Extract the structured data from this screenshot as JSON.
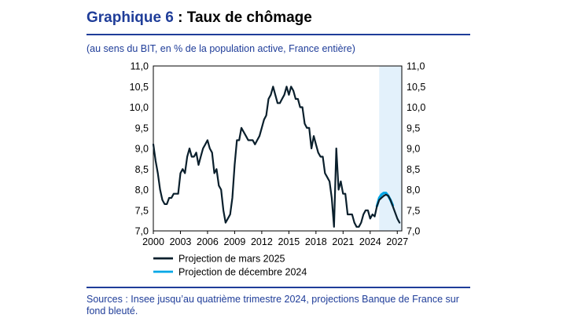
{
  "header": {
    "title_num": "Graphique 6",
    "title_text": " : Taux de chômage",
    "subtitle": "(au sens du BIT, en % de la population active, France entière)"
  },
  "footer": {
    "sources": "Sources : Insee jusqu’au quatrième trimestre 2024, projections Banque de France sur fond bleuté."
  },
  "chart_data": {
    "type": "line",
    "title": "Taux de chômage",
    "xlabel": "",
    "ylabel": "",
    "xlim": [
      2000,
      2027.5
    ],
    "ylim": [
      7.0,
      11.0
    ],
    "x_ticks": [
      "2000",
      "2003",
      "2006",
      "2009",
      "2012",
      "2015",
      "2018",
      "2021",
      "2024",
      "2027"
    ],
    "y_ticks": [
      "7,0",
      "7,5",
      "8,0",
      "8,5",
      "9,0",
      "9,5",
      "10,0",
      "10,5",
      "11,0"
    ],
    "projection_shading": {
      "from": 2025.0,
      "to": 2027.5,
      "color": "#e3f1fb"
    },
    "grid": false,
    "legend_position": "bottom",
    "series": [
      {
        "name": "Projection de mars 2025",
        "color": "#0a1f2c",
        "points": [
          [
            2000.0,
            9.1
          ],
          [
            2000.25,
            8.7
          ],
          [
            2000.5,
            8.4
          ],
          [
            2000.75,
            8.0
          ],
          [
            2001.0,
            7.75
          ],
          [
            2001.25,
            7.65
          ],
          [
            2001.5,
            7.65
          ],
          [
            2001.75,
            7.8
          ],
          [
            2002.0,
            7.8
          ],
          [
            2002.25,
            7.9
          ],
          [
            2002.5,
            7.9
          ],
          [
            2002.75,
            7.9
          ],
          [
            2003.0,
            8.4
          ],
          [
            2003.25,
            8.5
          ],
          [
            2003.5,
            8.4
          ],
          [
            2003.75,
            8.8
          ],
          [
            2004.0,
            9.0
          ],
          [
            2004.25,
            8.8
          ],
          [
            2004.5,
            8.8
          ],
          [
            2004.75,
            8.9
          ],
          [
            2005.0,
            8.6
          ],
          [
            2005.25,
            8.8
          ],
          [
            2005.5,
            9.0
          ],
          [
            2005.75,
            9.1
          ],
          [
            2006.0,
            9.2
          ],
          [
            2006.25,
            9.0
          ],
          [
            2006.5,
            8.9
          ],
          [
            2006.75,
            8.4
          ],
          [
            2007.0,
            8.5
          ],
          [
            2007.25,
            8.1
          ],
          [
            2007.5,
            8.0
          ],
          [
            2007.75,
            7.5
          ],
          [
            2008.0,
            7.2
          ],
          [
            2008.25,
            7.3
          ],
          [
            2008.5,
            7.4
          ],
          [
            2008.75,
            7.8
          ],
          [
            2009.0,
            8.6
          ],
          [
            2009.25,
            9.2
          ],
          [
            2009.5,
            9.2
          ],
          [
            2009.75,
            9.5
          ],
          [
            2010.0,
            9.4
          ],
          [
            2010.25,
            9.3
          ],
          [
            2010.5,
            9.2
          ],
          [
            2010.75,
            9.2
          ],
          [
            2011.0,
            9.2
          ],
          [
            2011.25,
            9.1
          ],
          [
            2011.5,
            9.2
          ],
          [
            2011.75,
            9.3
          ],
          [
            2012.0,
            9.5
          ],
          [
            2012.25,
            9.7
          ],
          [
            2012.5,
            9.8
          ],
          [
            2012.75,
            10.2
          ],
          [
            2013.0,
            10.3
          ],
          [
            2013.25,
            10.5
          ],
          [
            2013.5,
            10.3
          ],
          [
            2013.75,
            10.1
          ],
          [
            2014.0,
            10.1
          ],
          [
            2014.25,
            10.2
          ],
          [
            2014.5,
            10.3
          ],
          [
            2014.75,
            10.5
          ],
          [
            2015.0,
            10.3
          ],
          [
            2015.25,
            10.5
          ],
          [
            2015.5,
            10.4
          ],
          [
            2015.75,
            10.2
          ],
          [
            2016.0,
            10.2
          ],
          [
            2016.25,
            10.0
          ],
          [
            2016.5,
            10.0
          ],
          [
            2016.75,
            9.6
          ],
          [
            2017.0,
            9.5
          ],
          [
            2017.25,
            9.5
          ],
          [
            2017.5,
            9.0
          ],
          [
            2017.75,
            9.3
          ],
          [
            2018.0,
            9.1
          ],
          [
            2018.25,
            8.9
          ],
          [
            2018.5,
            8.8
          ],
          [
            2018.75,
            8.8
          ],
          [
            2019.0,
            8.4
          ],
          [
            2019.25,
            8.3
          ],
          [
            2019.5,
            8.2
          ],
          [
            2019.75,
            7.8
          ],
          [
            2020.0,
            7.1
          ],
          [
            2020.25,
            9.0
          ],
          [
            2020.5,
            8.0
          ],
          [
            2020.75,
            8.2
          ],
          [
            2021.0,
            7.9
          ],
          [
            2021.25,
            7.9
          ],
          [
            2021.5,
            7.4
          ],
          [
            2021.75,
            7.4
          ],
          [
            2022.0,
            7.4
          ],
          [
            2022.25,
            7.2
          ],
          [
            2022.5,
            7.1
          ],
          [
            2022.75,
            7.1
          ],
          [
            2023.0,
            7.2
          ],
          [
            2023.25,
            7.4
          ],
          [
            2023.5,
            7.5
          ],
          [
            2023.75,
            7.5
          ],
          [
            2024.0,
            7.3
          ],
          [
            2024.25,
            7.4
          ],
          [
            2024.5,
            7.35
          ],
          [
            2024.75,
            7.6
          ],
          [
            2025.0,
            7.75
          ],
          [
            2025.25,
            7.8
          ],
          [
            2025.5,
            7.85
          ],
          [
            2025.75,
            7.88
          ],
          [
            2026.0,
            7.85
          ],
          [
            2026.25,
            7.75
          ],
          [
            2026.5,
            7.6
          ],
          [
            2026.75,
            7.45
          ],
          [
            2027.0,
            7.3
          ],
          [
            2027.25,
            7.2
          ]
        ]
      },
      {
        "name": "Projection de décembre 2024",
        "color": "#00a6e6",
        "points": [
          [
            2024.75,
            7.6
          ],
          [
            2025.0,
            7.8
          ],
          [
            2025.25,
            7.88
          ],
          [
            2025.5,
            7.92
          ],
          [
            2025.75,
            7.92
          ],
          [
            2026.0,
            7.85
          ],
          [
            2026.25,
            7.75
          ],
          [
            2026.5,
            7.62
          ]
        ]
      }
    ]
  }
}
